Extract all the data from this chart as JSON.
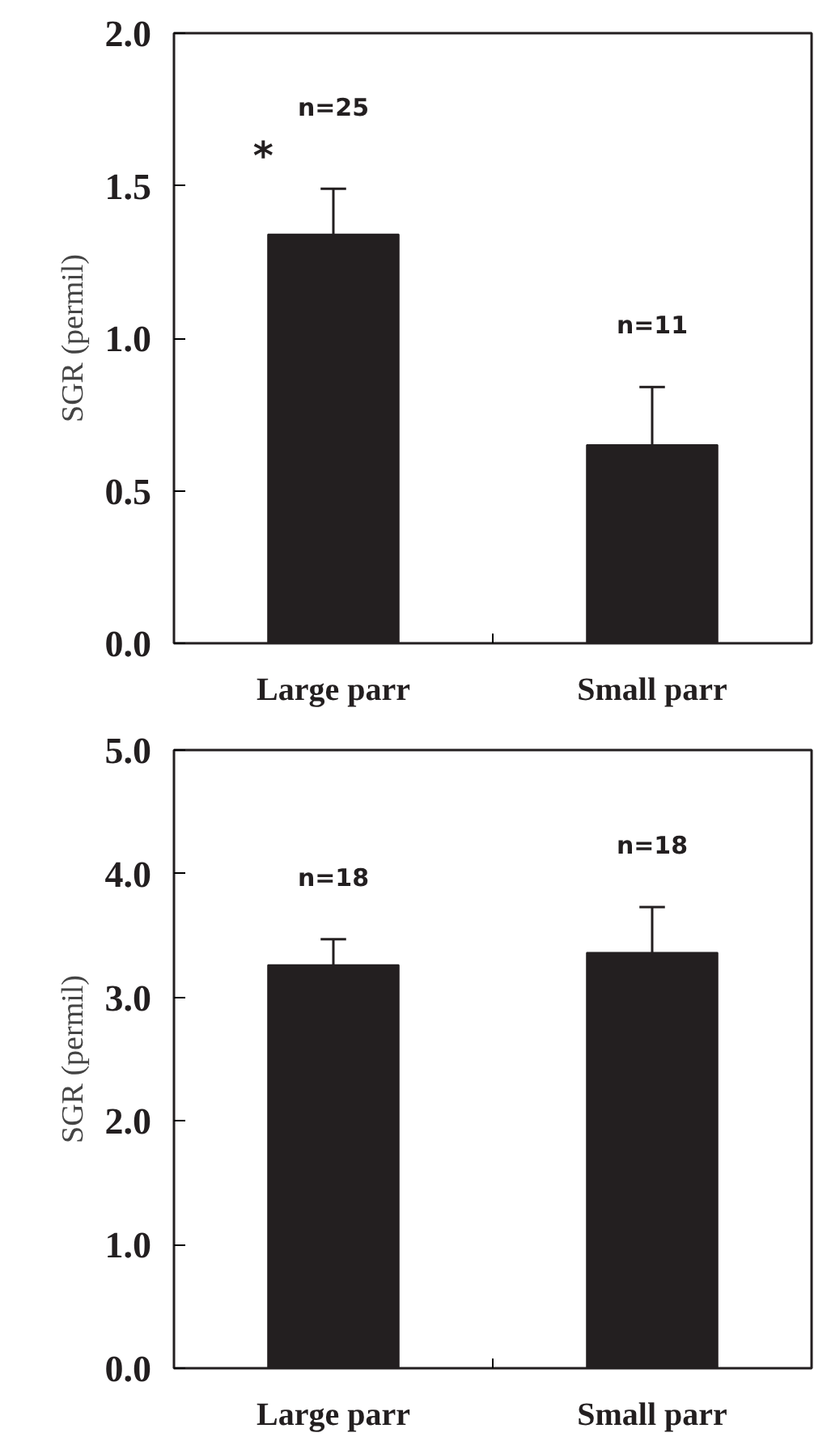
{
  "chart_data": [
    {
      "type": "bar",
      "categories": [
        "Large parr",
        "Small parr"
      ],
      "values": [
        1.34,
        0.65
      ],
      "errors": [
        0.15,
        0.19
      ],
      "color": "#231f20",
      "ylabel": "SGR (permil)",
      "ylim": [
        0,
        2.0
      ],
      "yticks": [
        {
          "value": 0,
          "label": "0.0"
        },
        0.5,
        {
          "value": 1,
          "label": "1.0"
        },
        1.5,
        {
          "value": 2,
          "label": "2.0"
        }
      ],
      "annotations": [
        "n=25",
        "*",
        "n=11"
      ]
    },
    {
      "type": "bar",
      "categories": [
        "Large parr",
        "Small parr"
      ],
      "values": [
        3.26,
        3.36
      ],
      "errors": [
        0.21,
        0.37
      ],
      "color": "#231f20",
      "ylabel": "SGR (permil)",
      "ylim": [
        0,
        5.0
      ],
      "yticks": [
        {
          "value": 0,
          "label": "0.0"
        },
        {
          "value": 1,
          "label": "1.0"
        },
        {
          "value": 2,
          "label": "2.0"
        },
        {
          "value": 3,
          "label": "3.0"
        },
        {
          "value": 4,
          "label": "4.0"
        },
        {
          "value": 5,
          "label": "5.0"
        }
      ],
      "annotations": [
        "n=18",
        "n=18"
      ]
    }
  ]
}
